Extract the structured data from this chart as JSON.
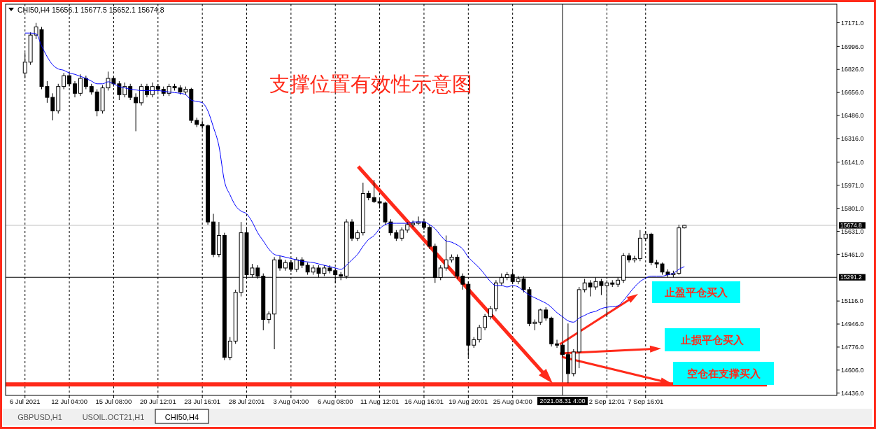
{
  "chart_data": {
    "type": "candlestick",
    "title": "CHI50,H4  15656.1 15677.5 15652.1 15674.8",
    "subtitle": "支撑位置有效性示意图",
    "color": "#000000",
    "categories": [
      "6 Jul 2021",
      null,
      null,
      null,
      null,
      null,
      null,
      null,
      "12 Jul 04:00",
      null,
      null,
      null,
      null,
      null,
      null,
      null,
      "15 Jul 08:00",
      null,
      null,
      null,
      null,
      null,
      null,
      null,
      "20 Jul 12:01",
      null,
      null,
      null,
      null,
      null,
      null,
      null,
      "23 Jul 16:01",
      null,
      null,
      null,
      null,
      null,
      null,
      null,
      "28 Jul 20:01",
      null,
      null,
      null,
      null,
      null,
      null,
      null,
      "3 Aug 04:00",
      null,
      null,
      null,
      null,
      null,
      null,
      null,
      "6 Aug 08:00",
      null,
      null,
      null,
      null,
      null,
      null,
      null,
      "11 Aug 12:01",
      null,
      null,
      null,
      null,
      null,
      null,
      null,
      "16 Aug 16:01",
      null,
      null,
      null,
      null,
      null,
      null,
      null,
      "19 Aug 20:01",
      null,
      null,
      null,
      null,
      null,
      null,
      null,
      "25 Aug 04:00",
      null,
      null,
      null,
      null,
      null,
      null,
      null,
      null,
      "2021.08.31 4:00",
      null,
      null,
      null,
      null,
      null,
      null,
      null,
      "2 Sep 12:01",
      null,
      null,
      null,
      null,
      null,
      null,
      "7 Sep 16:01",
      null,
      null,
      null,
      null,
      null,
      null,
      null
    ],
    "ohlc": [
      [
        16800,
        16950,
        16760,
        16880
      ],
      [
        16880,
        17100,
        16860,
        17080
      ],
      [
        17080,
        17170,
        17050,
        17140
      ],
      [
        17120,
        17140,
        16680,
        16700
      ],
      [
        16700,
        16740,
        16580,
        16620
      ],
      [
        16620,
        16650,
        16450,
        16520
      ],
      [
        16520,
        16720,
        16500,
        16700
      ],
      [
        16700,
        16800,
        16680,
        16780
      ],
      [
        16780,
        16800,
        16700,
        16720
      ],
      [
        16720,
        16740,
        16620,
        16650
      ],
      [
        16650,
        16790,
        16630,
        16760
      ],
      [
        16760,
        16780,
        16680,
        16700
      ],
      [
        16700,
        16720,
        16640,
        16660
      ],
      [
        16660,
        16680,
        16480,
        16520
      ],
      [
        16520,
        16710,
        16500,
        16690
      ],
      [
        16690,
        16810,
        16670,
        16760
      ],
      [
        16760,
        16780,
        16700,
        16720
      ],
      [
        16720,
        16740,
        16600,
        16640
      ],
      [
        16640,
        16730,
        16620,
        16700
      ],
      [
        16700,
        16720,
        16600,
        16620
      ],
      [
        16620,
        16650,
        16370,
        16580
      ],
      [
        16580,
        16720,
        16560,
        16700
      ],
      [
        16700,
        16720,
        16620,
        16640
      ],
      [
        16640,
        16730,
        16620,
        16700
      ],
      [
        16700,
        16720,
        16660,
        16680
      ],
      [
        16680,
        16700,
        16630,
        16650
      ],
      [
        16650,
        16720,
        16630,
        16700
      ],
      [
        16700,
        16720,
        16670,
        16690
      ],
      [
        16690,
        16710,
        16640,
        16660
      ],
      [
        16660,
        16700,
        16640,
        16680
      ],
      [
        16680,
        16690,
        16430,
        16450
      ],
      [
        16450,
        16470,
        16400,
        16420
      ],
      [
        16420,
        16450,
        16380,
        16410
      ],
      [
        16410,
        16420,
        15680,
        15700
      ],
      [
        15700,
        15760,
        15440,
        15460
      ],
      [
        15460,
        15700,
        15440,
        15600
      ],
      [
        15600,
        15620,
        14680,
        14700
      ],
      [
        14700,
        14850,
        14680,
        14820
      ],
      [
        14820,
        15200,
        14800,
        15180
      ],
      [
        15180,
        15700,
        15150,
        15620
      ],
      [
        15620,
        15650,
        15290,
        15310
      ],
      [
        15310,
        15390,
        15290,
        15360
      ],
      [
        15360,
        15380,
        15280,
        15300
      ],
      [
        15300,
        15320,
        14900,
        14980
      ],
      [
        14980,
        15040,
        14950,
        15020
      ],
      [
        15020,
        15440,
        14760,
        15420
      ],
      [
        15420,
        15450,
        15340,
        15360
      ],
      [
        15360,
        15420,
        15340,
        15400
      ],
      [
        15400,
        15420,
        15330,
        15350
      ],
      [
        15350,
        15440,
        15330,
        15420
      ],
      [
        15420,
        15440,
        15360,
        15380
      ],
      [
        15380,
        15400,
        15310,
        15330
      ],
      [
        15330,
        15380,
        15310,
        15360
      ],
      [
        15360,
        15380,
        15290,
        15320
      ],
      [
        15320,
        15380,
        15300,
        15360
      ],
      [
        15360,
        15380,
        15320,
        15340
      ],
      [
        15340,
        15360,
        15250,
        15310
      ],
      [
        15310,
        15330,
        15270,
        15300
      ],
      [
        15300,
        15720,
        15280,
        15700
      ],
      [
        15700,
        15720,
        15560,
        15580
      ],
      [
        15580,
        15640,
        15560,
        15620
      ],
      [
        15620,
        15990,
        15600,
        15910
      ],
      [
        15910,
        15930,
        15860,
        15880
      ],
      [
        15880,
        16010,
        15840,
        15850
      ],
      [
        15850,
        15870,
        15800,
        15840
      ],
      [
        15840,
        15850,
        15680,
        15700
      ],
      [
        15700,
        15720,
        15600,
        15620
      ],
      [
        15620,
        15640,
        15560,
        15580
      ],
      [
        15580,
        15660,
        15560,
        15640
      ],
      [
        15640,
        15700,
        15620,
        15680
      ],
      [
        15680,
        15710,
        15660,
        15690
      ],
      [
        15690,
        15740,
        15680,
        15700
      ],
      [
        15700,
        15720,
        15640,
        15660
      ],
      [
        15660,
        15680,
        15500,
        15520
      ],
      [
        15520,
        15540,
        15250,
        15290
      ],
      [
        15290,
        15380,
        15270,
        15360
      ],
      [
        15360,
        15600,
        15340,
        15420
      ],
      [
        15420,
        15460,
        15400,
        15440
      ],
      [
        15440,
        15460,
        15280,
        15300
      ],
      [
        15300,
        15320,
        15200,
        15240
      ],
      [
        15240,
        15260,
        14700,
        14790
      ],
      [
        14790,
        14850,
        14770,
        14830
      ],
      [
        14830,
        14940,
        14810,
        14920
      ],
      [
        14920,
        15020,
        14900,
        15000
      ],
      [
        15000,
        15080,
        14980,
        15060
      ],
      [
        15060,
        15270,
        15040,
        15250
      ],
      [
        15250,
        15320,
        15230,
        15290
      ],
      [
        15290,
        15330,
        15270,
        15310
      ],
      [
        15310,
        15340,
        15240,
        15260
      ],
      [
        15260,
        15300,
        15240,
        15280
      ],
      [
        15280,
        15300,
        15180,
        15200
      ],
      [
        15200,
        15220,
        14930,
        14950
      ],
      [
        14950,
        14980,
        14900,
        14960
      ],
      [
        14960,
        15060,
        14940,
        15050
      ],
      [
        15050,
        15070,
        14970,
        14990
      ],
      [
        14990,
        15000,
        14780,
        14800
      ],
      [
        14800,
        14830,
        14770,
        14790
      ],
      [
        14790,
        14810,
        14700,
        14720
      ],
      [
        14720,
        14950,
        14510,
        14580
      ],
      [
        14580,
        14760,
        14560,
        14740
      ],
      [
        14740,
        15220,
        14620,
        15200
      ],
      [
        15200,
        15280,
        15180,
        15250
      ],
      [
        15250,
        15270,
        15150,
        15220
      ],
      [
        15220,
        15290,
        15200,
        15260
      ],
      [
        15260,
        15280,
        15160,
        15230
      ],
      [
        15230,
        15270,
        15000,
        15250
      ],
      [
        15250,
        15270,
        15220,
        15240
      ],
      [
        15240,
        15290,
        15220,
        15270
      ],
      [
        15270,
        15470,
        15250,
        15450
      ],
      [
        15450,
        15470,
        15400,
        15420
      ],
      [
        15420,
        15450,
        15400,
        15430
      ],
      [
        15430,
        15640,
        15410,
        15580
      ],
      [
        15580,
        15630,
        15560,
        15610
      ],
      [
        15610,
        15620,
        15380,
        15400
      ],
      [
        15400,
        15420,
        15360,
        15390
      ],
      [
        15390,
        15400,
        15310,
        15330
      ],
      [
        15330,
        15350,
        15290,
        15310
      ],
      [
        15310,
        15340,
        15290,
        15320
      ],
      [
        15320,
        15680,
        15310,
        15656.1
      ],
      [
        15656.1,
        15677.5,
        15652.1,
        15674.8
      ]
    ],
    "series": [
      {
        "type": "line",
        "color": "#0000ff",
        "values": [
          17095,
          17095,
          17090,
          17000,
          16920,
          16860,
          16830,
          16820,
          16800,
          16790,
          16775,
          16760,
          16740,
          16720,
          16720,
          16735,
          16720,
          16700,
          16690,
          16680,
          16675,
          16670,
          16670,
          16670,
          16670,
          16665,
          16660,
          16655,
          16650,
          16640,
          16600,
          16590,
          16580,
          16520,
          16400,
          16260,
          16000,
          15900,
          15820,
          15780,
          15760,
          15700,
          15620,
          15560,
          15500,
          15460,
          15450,
          15440,
          15430,
          15420,
          15410,
          15405,
          15400,
          15390,
          15380,
          15370,
          15360,
          15350,
          15380,
          15420,
          15460,
          15520,
          15570,
          15600,
          15650,
          15680,
          15690,
          15690,
          15690,
          15690,
          15700,
          15700,
          15700,
          15680,
          15650,
          15600,
          15560,
          15550,
          15530,
          15500,
          15440,
          15400,
          15360,
          15310,
          15260,
          15230,
          15230,
          15220,
          15230,
          15220,
          15190,
          15160,
          15140,
          15120,
          15100,
          15070,
          15030,
          15000,
          14970,
          14960,
          14990,
          15010,
          15030,
          15040,
          15060,
          15070,
          15075,
          15080,
          15120,
          15170,
          15220,
          15260,
          15285,
          15300,
          15300,
          15300,
          15310,
          15320,
          15350,
          15370
        ]
      }
    ],
    "ylim": [
      14419,
      17308
    ],
    "yticks": [
      {
        "value": 17171,
        "label": "17171.0"
      },
      {
        "value": 16996,
        "label": "16996.0"
      },
      {
        "value": 16826,
        "label": "16826.0"
      },
      {
        "value": 16656,
        "label": "16656.0"
      },
      {
        "value": 16486,
        "label": "16486.0"
      },
      {
        "value": 16316,
        "label": "16316.0"
      },
      {
        "value": 16141,
        "label": "16141.0"
      },
      {
        "value": 15971,
        "label": "15971.0"
      },
      {
        "value": 15801,
        "label": "15801.0"
      },
      {
        "value": 15631,
        "label": "15631.0"
      },
      {
        "value": 15461,
        "label": "15461.0"
      },
      {
        "value": 15116,
        "label": "15116.0"
      },
      {
        "value": 14946,
        "label": "14946.0"
      },
      {
        "value": 14776,
        "label": "14776.0"
      },
      {
        "value": 14606,
        "label": "14606.0"
      },
      {
        "value": 14436,
        "label": "14436.0"
      }
    ],
    "grid": "x",
    "ref_lines": [
      {
        "axis": "y",
        "value": 15674.8,
        "label": "15674.8",
        "color": "#c0c0c0"
      },
      {
        "axis": "y",
        "value": 15291.2,
        "label": "15291.2",
        "color": "#000000"
      },
      {
        "axis": "x",
        "value": "2021.08.31 4:00",
        "color": "#000000"
      },
      {
        "axis": "y",
        "value": 14500,
        "color": "#ff2a1a"
      }
    ],
    "annotations": [
      "止盈平仓买入",
      "止损平仓买入",
      "空仓在支撑买入",
      "GBPUSD,H1",
      "USOIL.OCT21,H1",
      "CHI50,H4"
    ]
  }
}
